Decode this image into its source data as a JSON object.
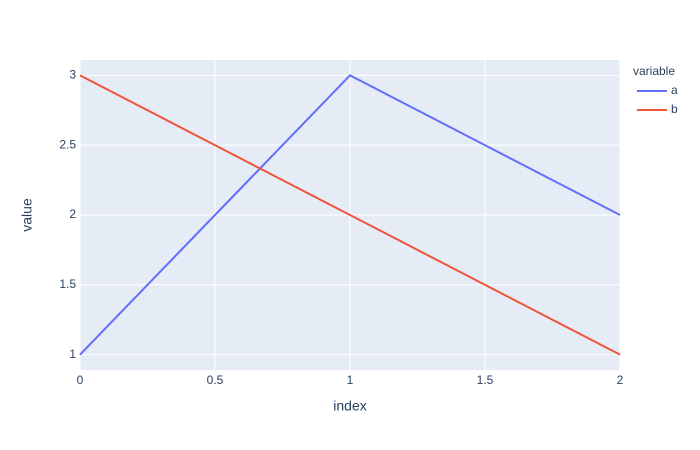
{
  "chart_data": {
    "type": "line",
    "x_label": "index",
    "y_label": "value",
    "x": [
      0,
      1,
      2
    ],
    "series": [
      {
        "name": "a",
        "color": "#636efa",
        "values": [
          1,
          3,
          2
        ]
      },
      {
        "name": "b",
        "color": "#EF553B",
        "values": [
          3,
          2,
          1
        ]
      }
    ],
    "legend_title": "variable",
    "xlim": [
      0,
      2
    ],
    "xticks": [
      0,
      0.5,
      1,
      1.5,
      2
    ],
    "ylim": [
      0.89,
      3.11
    ],
    "yticks": [
      1,
      1.5,
      2,
      2.5,
      3
    ],
    "grid": true,
    "legend": "right"
  }
}
